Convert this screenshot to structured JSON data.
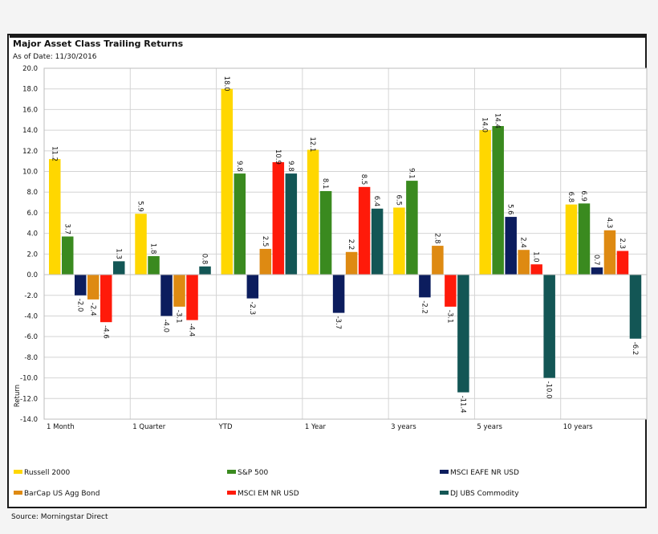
{
  "title": "Major Asset Class Trailing Returns",
  "as_of": "As of Date: 11/30/2016",
  "source": "Source: Morningstar Direct",
  "chart_data": {
    "type": "bar",
    "title": "Major Asset Class Trailing Returns",
    "xlabel": "",
    "ylabel": "Return",
    "ylim": [
      -14,
      20
    ],
    "y_ticks": [
      "20.0",
      "18.0",
      "16.0",
      "14.0",
      "12.0",
      "10.0",
      "8.0",
      "6.0",
      "4.0",
      "2.0",
      "0.0",
      "-2.0",
      "-4.0",
      "-6.0",
      "-8.0",
      "-10.0",
      "-12.0",
      "-14.0"
    ],
    "grid": true,
    "legend_position": "bottom",
    "categories": [
      "1 Month",
      "1 Quarter",
      "YTD",
      "1 Year",
      "3 years",
      "5 years",
      "10 years"
    ],
    "series": [
      {
        "name": "Russell 2000",
        "color": "#ffd700",
        "values": [
          11.2,
          5.9,
          18.0,
          12.1,
          6.5,
          14.0,
          6.8
        ]
      },
      {
        "name": "S&P 500",
        "color": "#3a8a1f",
        "values": [
          3.7,
          1.8,
          9.8,
          8.1,
          9.1,
          14.4,
          6.9
        ]
      },
      {
        "name": "MSCI EAFE NR USD",
        "color": "#0c1d5e",
        "values": [
          -2.0,
          -4.0,
          -2.3,
          -3.7,
          -2.2,
          5.6,
          0.7
        ]
      },
      {
        "name": "BarCap US Agg Bond",
        "color": "#de8a12",
        "values": [
          -2.4,
          -3.1,
          2.5,
          2.2,
          2.8,
          2.4,
          4.3
        ]
      },
      {
        "name": "MSCI EM NR USD",
        "color": "#ff1a0a",
        "values": [
          -4.6,
          -4.4,
          10.9,
          8.5,
          -3.1,
          1.0,
          2.3
        ]
      },
      {
        "name": "DJ UBS Commodity",
        "color": "#135655",
        "values": [
          1.3,
          0.8,
          9.8,
          6.4,
          -11.4,
          -10.0,
          -6.2
        ]
      }
    ],
    "legend_order": [
      0,
      1,
      2,
      3,
      4,
      5
    ]
  }
}
